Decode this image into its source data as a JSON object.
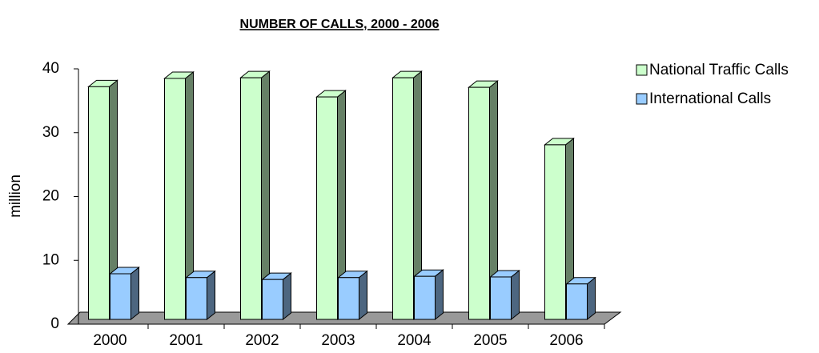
{
  "chart_data": {
    "type": "bar3d",
    "title": "NUMBER OF CALLS, 2000 - 2006",
    "y_label": "million",
    "categories": [
      "2000",
      "2001",
      "2002",
      "2003",
      "2004",
      "2005",
      "2006"
    ],
    "series": [
      {
        "name": "National Traffic Calls",
        "color": "#ccffcc",
        "values": [
          37.2,
          38.5,
          38.6,
          35.6,
          38.6,
          37.1,
          28.1
        ]
      },
      {
        "name": "International Calls",
        "color": "#99ccff",
        "values": [
          7.9,
          7.3,
          7.0,
          7.3,
          7.5,
          7.4,
          6.3
        ]
      }
    ],
    "ylim": [
      0,
      40
    ],
    "yticks": [
      0,
      10,
      20,
      30,
      40
    ],
    "legend": "right"
  }
}
